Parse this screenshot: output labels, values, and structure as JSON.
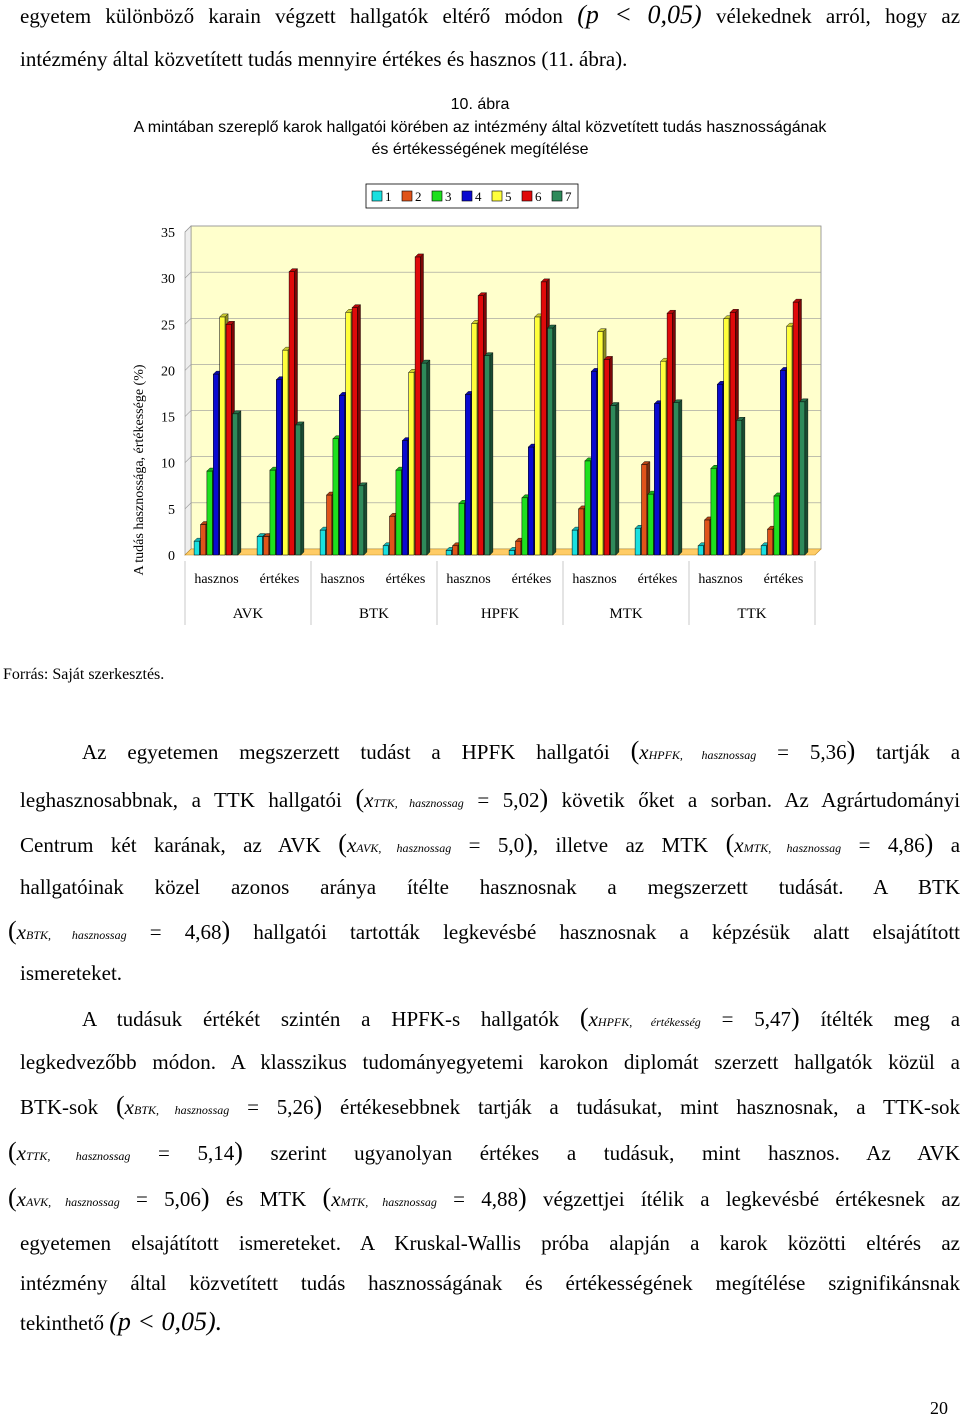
{
  "para0": {
    "line1": [
      "egyetem különböző karain végzett hallgatók eltérő módon",
      "(p < 0,05)",
      "vélekednek arról, hogy az"
    ],
    "line2": "intézmény által közvetített tudás mennyire értékes és hasznos (11. ábra)."
  },
  "figure": {
    "number": "10. ábra",
    "title_line1": "A mintában szereplő karok hallgatói körében az intézmény által közvetített tudás hasznosságának",
    "title_line2": "és értékességének megítélése",
    "source": "Forrás: Saját szerkesztés."
  },
  "chart_data": {
    "type": "bar",
    "ylabel": "A tudás hasznossága, értékessége (%)",
    "ylim": [
      0,
      35
    ],
    "yticks": [
      "0",
      "5",
      "10",
      "15",
      "20",
      "25",
      "30",
      "35"
    ],
    "grid": true,
    "legend_position": "top",
    "groups": [
      "AVK",
      "BTK",
      "HPFK",
      "MTK",
      "TTK"
    ],
    "categories": [
      "hasznos",
      "értékes",
      "hasznos",
      "értékes",
      "hasznos",
      "értékes",
      "hasznos",
      "értékes",
      "hasznos",
      "értékes"
    ],
    "series": [
      {
        "name": "1",
        "color": "#19e0e0",
        "values": [
          1.5,
          2.0,
          2.7,
          1.0,
          0.5,
          0.5,
          2.7,
          2.9,
          1.0,
          1.0
        ]
      },
      {
        "name": "2",
        "color": "#e0541a",
        "values": [
          3.3,
          2.0,
          6.5,
          4.2,
          1.0,
          1.5,
          5.0,
          9.8,
          3.8,
          2.8
        ]
      },
      {
        "name": "3",
        "color": "#1ee01e",
        "values": [
          9.1,
          9.2,
          12.6,
          9.2,
          5.6,
          6.2,
          10.2,
          6.6,
          9.4,
          6.4
        ]
      },
      {
        "name": "4",
        "color": "#0a0ad0",
        "values": [
          19.6,
          19.0,
          17.3,
          12.4,
          17.4,
          11.7,
          19.9,
          16.4,
          18.5,
          20.0
        ]
      },
      {
        "name": "5",
        "color": "#ffff3c",
        "values": [
          25.8,
          22.2,
          26.3,
          19.8,
          25.1,
          25.8,
          24.2,
          21.0,
          25.6,
          24.8
        ]
      },
      {
        "name": "6",
        "color": "#e00a0a",
        "values": [
          25.0,
          30.7,
          26.8,
          32.3,
          28.1,
          29.6,
          21.2,
          26.2,
          26.3,
          27.4
        ]
      },
      {
        "name": "7",
        "color": "#2e8a5a",
        "values": [
          15.3,
          14.1,
          7.5,
          20.8,
          21.6,
          24.6,
          16.2,
          16.5,
          14.6,
          16.6
        ]
      }
    ]
  },
  "para1": {
    "l1_pre": "Az egyetemen megszerzett tudást a HPFK hallgatói",
    "l1_var": "x",
    "l1_sub": "HPFK, hasznossag",
    "l1_val": "= 5,36",
    "l1_post": "tartják a",
    "l2_pre": "leghasznosabbnak, a TTK hallgatói",
    "l2_var": "x",
    "l2_sub": "TTK, hasznossag",
    "l2_val": "= 5,02",
    "l2_post": "követik őket a sorban. Az Agrártudományi",
    "l3_pre": "Centrum két karának, az AVK",
    "l3_var1": "x",
    "l3_sub1": "AVK, hasznossag",
    "l3_val1": "= 5,0",
    "l3_mid": ", illetve az MTK",
    "l3_var2": "x",
    "l3_sub2": "MTK, hasznossag",
    "l3_val2": "= 4,86",
    "l3_post": "a",
    "l4": "hallgatóinak közel azonos aránya ítélte hasznosnak a megszerzett tudását. A BTK",
    "l5_var": "x",
    "l5_sub": "BTK, hasznossag",
    "l5_val": "= 4,68",
    "l5_post": "hallgatói tartották legkevésbé hasznosnak a képzésük alatt elsajátított",
    "l6": "ismereteket."
  },
  "para2": {
    "l1_pre": "A tudásuk értékét szintén a HPFK-s hallgatók",
    "l1_var": "x",
    "l1_sub": "HPFK, értékesség",
    "l1_val": "= 5,47",
    "l1_post": "ítélték meg a",
    "l2": "legkedvezőbb módon. A klasszikus tudományegyetemi karokon diplomát szerzett hallgatók közül a",
    "l3_pre": "BTK-sok",
    "l3_var": "x",
    "l3_sub": "BTK, hasznossag",
    "l3_val": "= 5,26",
    "l3_post": "értékesebbnek tartják a tudásukat, mint hasznosnak, a TTK-sok",
    "l4_var": "x",
    "l4_sub": "TTK, hasznossag",
    "l4_val": "= 5,14",
    "l4_post": "szerint ugyanolyan értékes a tudásuk, mint hasznos. Az AVK",
    "l5_var1": "x",
    "l5_sub1": "AVK, hasznossag",
    "l5_val1": "= 5,06",
    "l5_mid": "és MTK",
    "l5_var2": "x",
    "l5_sub2": "MTK, hasznossag",
    "l5_val2": "= 4,88",
    "l5_post": "végzettjei ítélik a legkevésbé értékesnek az",
    "l6": "egyetemen elsajátított ismereteket. A Kruskal-Wallis próba alapján a karok közötti eltérés az",
    "l7": "intézmény által közvetített tudás hasznosságának és értékességének megítélése szignifikánsnak",
    "l8_pre": "tekinthető",
    "l8_math": "(p < 0,05)."
  },
  "page_number": "20"
}
